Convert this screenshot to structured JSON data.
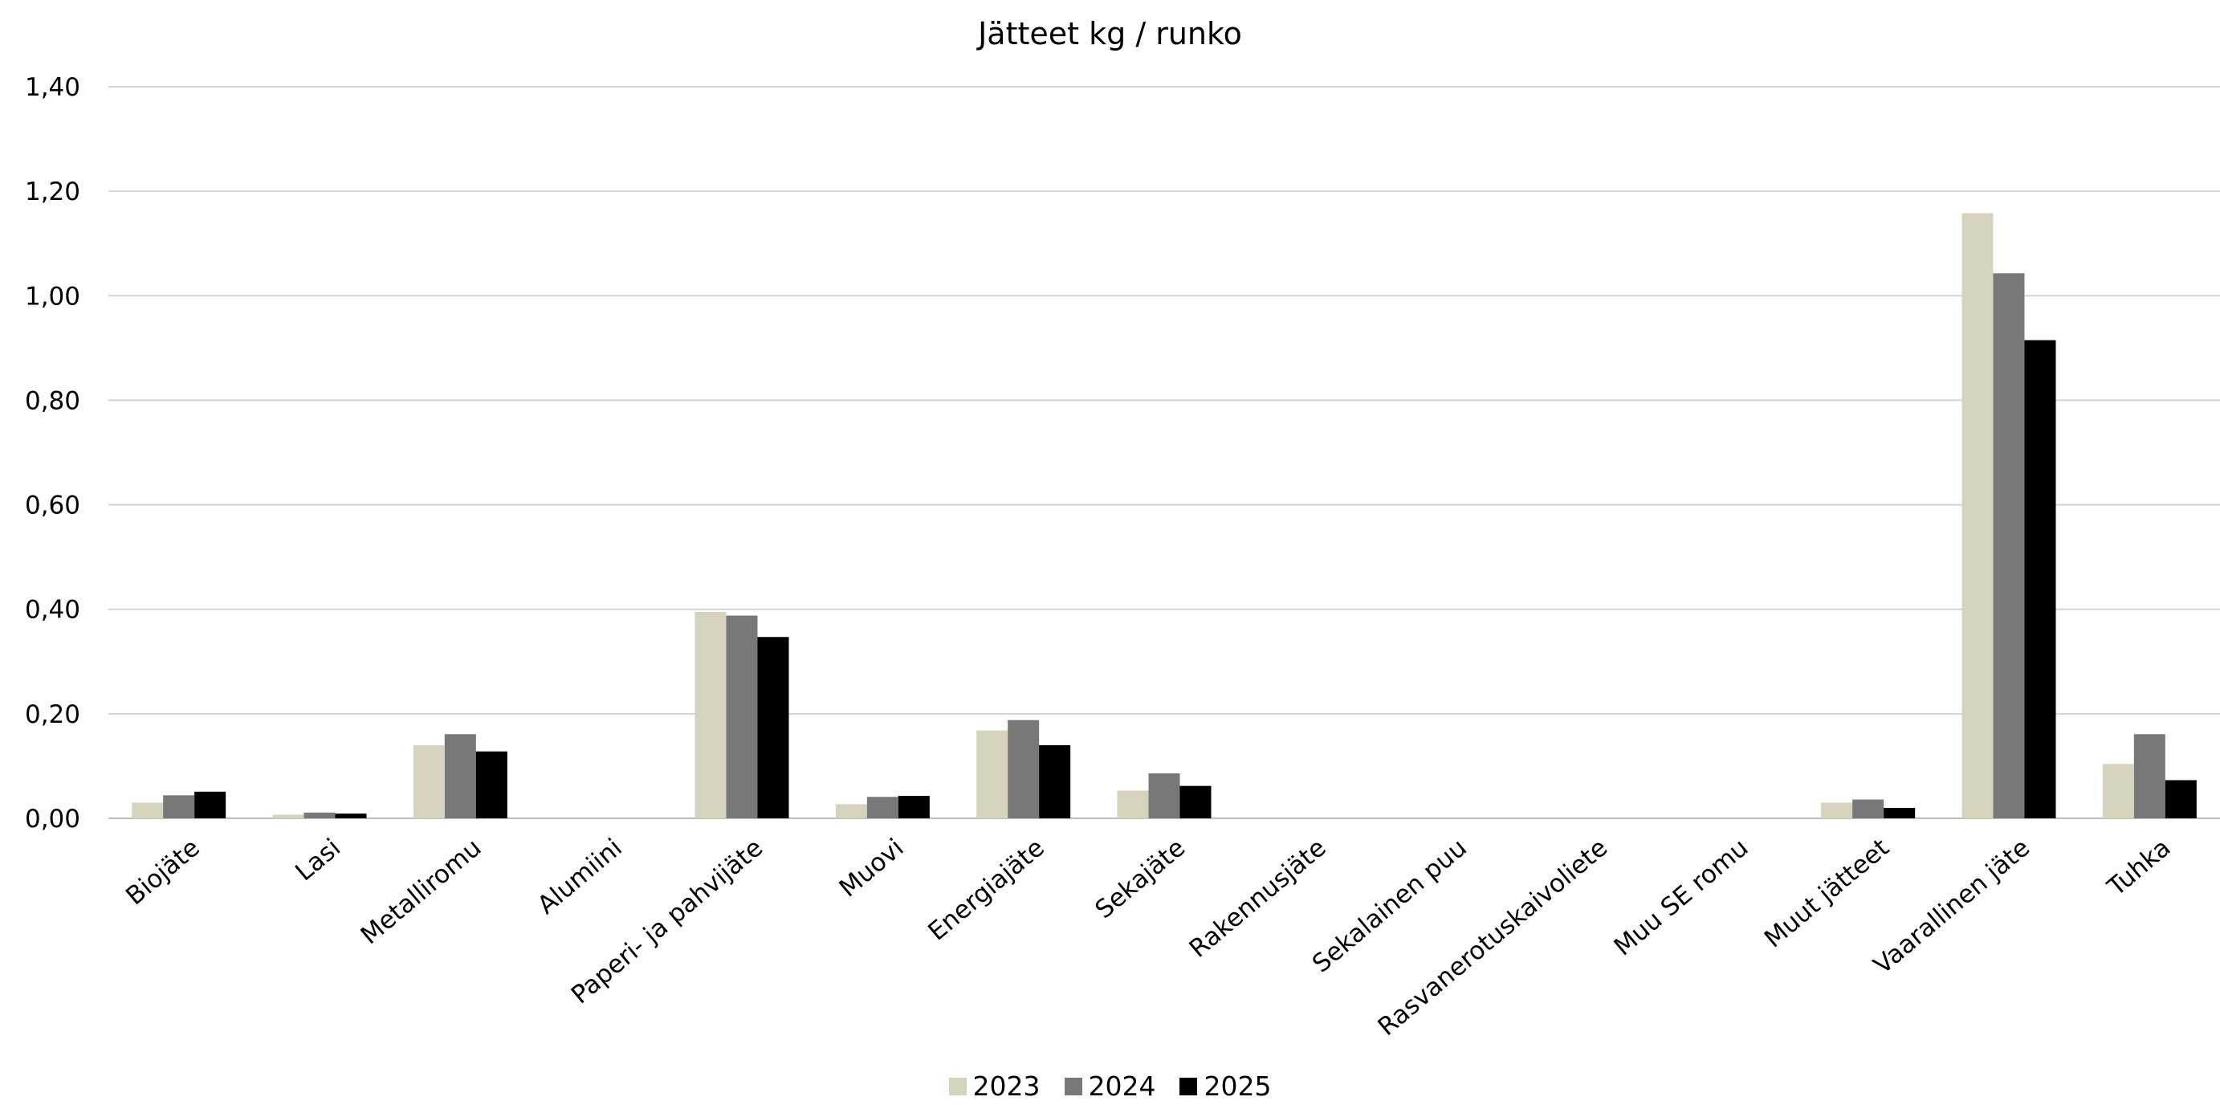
{
  "chart_data": {
    "type": "bar",
    "title": "Jätteet kg / runko",
    "xlabel": "",
    "ylabel": "",
    "ylim": [
      0,
      1.4
    ],
    "yticks": [
      "0,00",
      "0,20",
      "0,40",
      "0,60",
      "0,80",
      "1,00",
      "1,20",
      "1,40"
    ],
    "grid": true,
    "legend_position": "bottom",
    "categories": [
      "Biojäte",
      "Lasi",
      "Metalliromu",
      "Alumiini",
      "Paperi- ja pahvijäte",
      "Muovi",
      "Energiajäte",
      "Sekajäte",
      "Rakennusjäte",
      "Sekalainen puu",
      "Rasvanerotuskaivoliete",
      "Muu SE romu",
      "Muut jätteet",
      "Vaarallinen jäte",
      "Tuhka"
    ],
    "series": [
      {
        "name": "2023",
        "color": "#d5d3bd",
        "values": [
          0.03,
          0.007,
          0.14,
          0,
          0.395,
          0.027,
          0.168,
          0.053,
          0,
          0,
          0,
          0,
          0.03,
          1.158,
          0.104
        ]
      },
      {
        "name": "2024",
        "color": "#767978",
        "values": [
          0.044,
          0.011,
          0.161,
          0,
          0.388,
          0.041,
          0.188,
          0.086,
          0,
          0,
          0,
          0,
          0.036,
          1.043,
          0.161
        ]
      },
      {
        "name": "2025",
        "color": "#000000",
        "values": [
          0.051,
          0.009,
          0.128,
          0,
          0.347,
          0.043,
          0.14,
          0.062,
          0,
          0,
          0,
          0,
          0.02,
          0.915,
          0.073
        ]
      }
    ]
  }
}
